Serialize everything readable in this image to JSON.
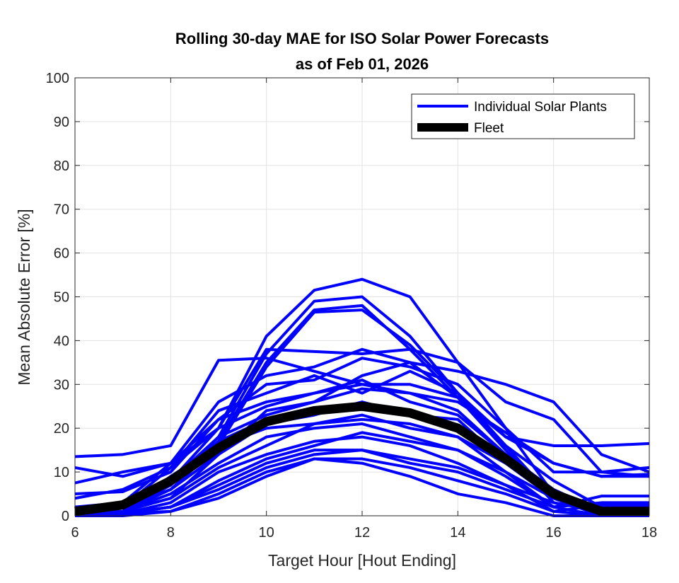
{
  "chart_data": {
    "type": "line",
    "title": "Rolling 30-day MAE for ISO Solar Power Forecasts",
    "subtitle": "as of Feb 01, 2026",
    "xlabel": "Target Hour [Hout Ending]",
    "ylabel": "Mean Absolute Error [%]",
    "xlim": [
      6,
      18
    ],
    "ylim": [
      0,
      100
    ],
    "xticks": [
      6,
      8,
      10,
      12,
      14,
      16,
      18
    ],
    "yticks": [
      0,
      10,
      20,
      30,
      40,
      50,
      60,
      70,
      80,
      90,
      100
    ],
    "grid": true,
    "legend_position": "top-right",
    "x": [
      6,
      7,
      8,
      9,
      10,
      11,
      12,
      13,
      14,
      15,
      16,
      17,
      18
    ],
    "colors": {
      "plants": "#0000ff",
      "fleet": "#000000"
    },
    "legend": [
      "Individual Solar Plants",
      "Fleet"
    ],
    "plants": [
      [
        1,
        2,
        8,
        20,
        41,
        51.5,
        54,
        50,
        35,
        20,
        5,
        1,
        1
      ],
      [
        1,
        2,
        7,
        18,
        37,
        49,
        50,
        41,
        28,
        16,
        4,
        1,
        1
      ],
      [
        1,
        2,
        7,
        17,
        35,
        47,
        48,
        38,
        27,
        15,
        4,
        1,
        1
      ],
      [
        1,
        2,
        6,
        16,
        34,
        46.5,
        47,
        39,
        28,
        15,
        3,
        1,
        1
      ],
      [
        13.5,
        14,
        16,
        35.5,
        36,
        33,
        30,
        30,
        27,
        18,
        16,
        16,
        16.5
      ],
      [
        11,
        9,
        12,
        20,
        38,
        37.5,
        37,
        38,
        35,
        26,
        22,
        10,
        11
      ],
      [
        7.5,
        10,
        12,
        26,
        32,
        34,
        38,
        35,
        33,
        30,
        26,
        14,
        10
      ],
      [
        5,
        5.5,
        10,
        22,
        30,
        31,
        36,
        34,
        30,
        20,
        10,
        10,
        9
      ],
      [
        4,
        6,
        11,
        24,
        28,
        32,
        28,
        33,
        28,
        18,
        12,
        9,
        9
      ],
      [
        2,
        3,
        12,
        22,
        26,
        28,
        30,
        28,
        26,
        19,
        12,
        9,
        9.5
      ],
      [
        0,
        1,
        4,
        14,
        24,
        26,
        32,
        35,
        27,
        16,
        8,
        2,
        2
      ],
      [
        0,
        2,
        11,
        20,
        25,
        28,
        31,
        26,
        23,
        14,
        6,
        1,
        1
      ],
      [
        0,
        1,
        8,
        18,
        23,
        26,
        29,
        28,
        24,
        14,
        5,
        1,
        1
      ],
      [
        0,
        1,
        6,
        14,
        21,
        23,
        26,
        23,
        22,
        12,
        4,
        0,
        0
      ],
      [
        0,
        1,
        9,
        16,
        20,
        21,
        23,
        20,
        18,
        10,
        4,
        0,
        0
      ],
      [
        0,
        1,
        5,
        12,
        18,
        20,
        21,
        18,
        15,
        9,
        2,
        0,
        0
      ],
      [
        0,
        0.5,
        3,
        10,
        14,
        17,
        18,
        16,
        12,
        7,
        1,
        0,
        0
      ],
      [
        0,
        0.5,
        2,
        8,
        13,
        16,
        19,
        17,
        15,
        10,
        2,
        4.5,
        4.5
      ],
      [
        0,
        0.5,
        1,
        5,
        10,
        13,
        13,
        11,
        8,
        5,
        1,
        2.5,
        2.5
      ],
      [
        0,
        0.5,
        2,
        6,
        11,
        14,
        15,
        12,
        10,
        6,
        2,
        3,
        3
      ],
      [
        0,
        0.5,
        2,
        7,
        12,
        15,
        15,
        13,
        11,
        7,
        3,
        1,
        1
      ],
      [
        1,
        1,
        4,
        11,
        16,
        21,
        22,
        21,
        18,
        12,
        5,
        1,
        1
      ],
      [
        0,
        0,
        1,
        4,
        9,
        13,
        12,
        9,
        5,
        3,
        0,
        0,
        0
      ],
      [
        0,
        1,
        7,
        17,
        22,
        24,
        25,
        23,
        20,
        13,
        5,
        1,
        1
      ]
    ],
    "fleet": [
      1,
      2.5,
      8,
      15.5,
      21.5,
      24,
      25,
      23.5,
      20,
      13,
      5,
      1,
      1
    ]
  }
}
